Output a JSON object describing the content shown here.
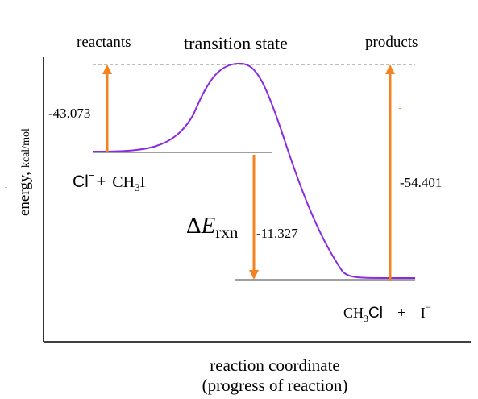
{
  "colors": {
    "curve": "#8a2be2",
    "arrow": "#f58220",
    "level_line": "#808080",
    "dashed_line": "#a8a8a8",
    "axis": "#000000",
    "text": "#000000"
  },
  "labels": {
    "reactants": "reactants",
    "transition_state": "transition state",
    "products": "products",
    "y_axis_main": "energy,",
    "y_axis_units": "kcal/mol",
    "x_axis_line1": "reaction coordinate",
    "x_axis_line2": "(progress of reaction)"
  },
  "values": {
    "activation_energy": "-43.073",
    "reverse_energy": "-54.401",
    "delta_e_rxn": "-11.327"
  },
  "delta_e_label": {
    "delta": "Δ",
    "e": "E",
    "sub": "rxn"
  },
  "reactant_species": {
    "ion": "Cl",
    "ion_charge": "−",
    "plus": "+",
    "molecule_pre": "CH",
    "molecule_sub": "3",
    "molecule_post": "I"
  },
  "product_species": {
    "molecule_pre": "CH",
    "molecule_sub": "3",
    "molecule_post": "Cl",
    "plus": "+",
    "ion": "I",
    "ion_charge": "−"
  }
}
